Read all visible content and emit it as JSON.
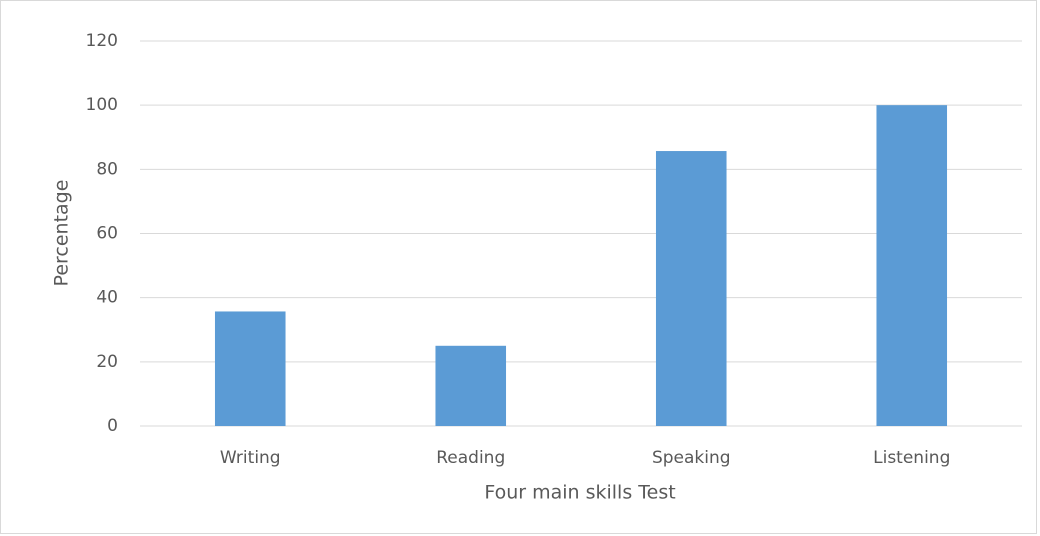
{
  "chart_data": {
    "type": "bar",
    "categories": [
      "Writing",
      "Reading",
      "Speaking",
      "Listening"
    ],
    "values": [
      35.7,
      25,
      85.7,
      100
    ],
    "color": "#5b9bd5",
    "xlabel": "Four main skills Test",
    "ylabel": "Percentage",
    "ylim": [
      0,
      120
    ],
    "yticks": [
      0,
      20,
      40,
      60,
      80,
      100,
      120
    ],
    "grid": true
  }
}
